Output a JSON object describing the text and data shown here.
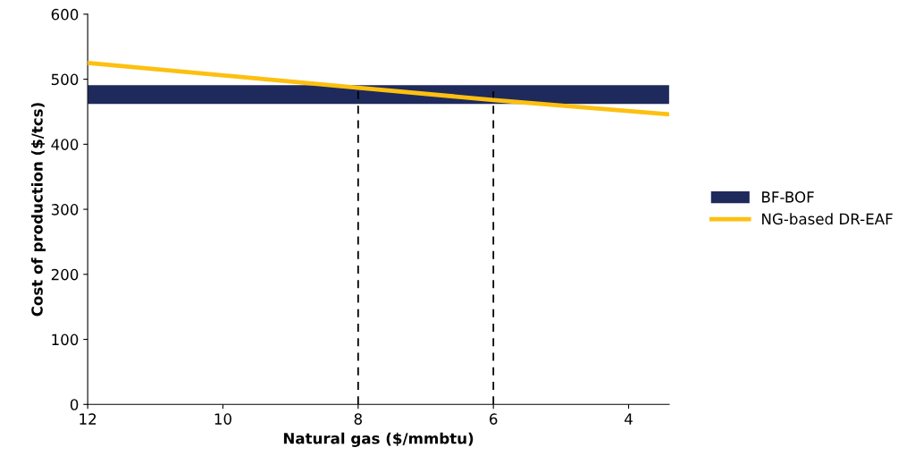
{
  "chart_data": {
    "type": "line",
    "xlabel": "Natural gas ($/mmbtu)",
    "ylabel": "Cost of production ($/tcs)",
    "xlim": [
      12,
      3.4
    ],
    "xticks": [
      12,
      10,
      8,
      6,
      4
    ],
    "ylim": [
      0,
      600
    ],
    "yticks": [
      0,
      100,
      200,
      300,
      400,
      500,
      600
    ],
    "grid": false,
    "legend": "right",
    "marker": "none",
    "bands": [
      {
        "axis": "y",
        "from": 462,
        "to": 491,
        "label": "BF-BOF",
        "color": "#1f2a5c"
      }
    ],
    "series": [
      {
        "name": "NG-based DR-EAF",
        "color": "#fdc010",
        "x": [
          12,
          8,
          6,
          3.4
        ],
        "values": [
          525,
          487,
          468,
          446
        ],
        "line_style": "solid"
      }
    ],
    "ref_lines": [
      {
        "axis": "x",
        "value": 8,
        "color": "#000000",
        "line_style": "dashed"
      },
      {
        "axis": "x",
        "value": 6,
        "color": "#000000",
        "line_style": "dashed"
      }
    ]
  }
}
